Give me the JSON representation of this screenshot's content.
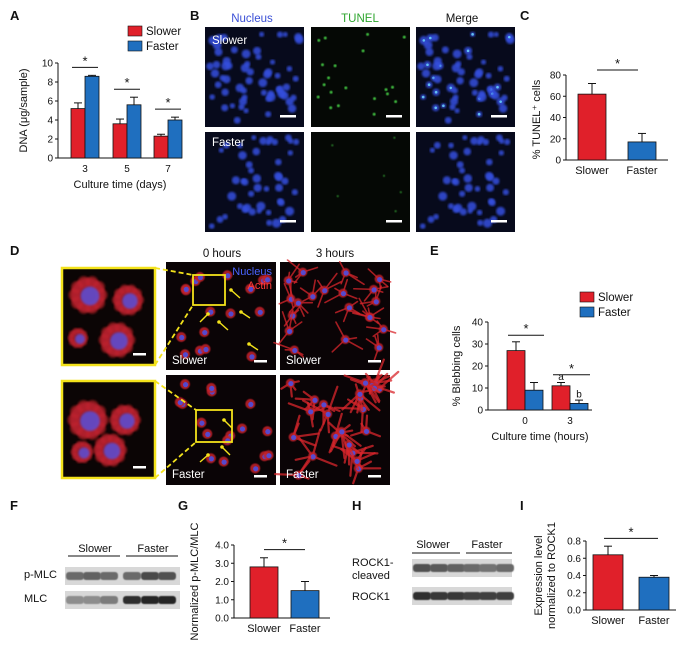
{
  "colors": {
    "slower": "#e0202a",
    "faster": "#1f6fbf",
    "nucleus": "#3a4fd6",
    "tunel": "#2ea52e",
    "actin": "#d9262c",
    "yellow": "#f3e21b"
  },
  "panel_labels": {
    "A": "A",
    "B": "B",
    "C": "C",
    "D": "D",
    "E": "E",
    "F": "F",
    "G": "G",
    "H": "H",
    "I": "I"
  },
  "legend": {
    "slower": "Slower",
    "faster": "Faster"
  },
  "significance_marker": "*",
  "B": {
    "headers": [
      "Nucleus",
      "TUNEL",
      "Merge"
    ],
    "rows": [
      "Slower",
      "Faster"
    ]
  },
  "D": {
    "time_headers": [
      "0 hours",
      "3 hours"
    ],
    "stain_nucleus": "Nucleus",
    "stain_actin": "Actin",
    "rows": [
      "Slower",
      "Faster"
    ]
  },
  "F": {
    "groups": [
      "Slower",
      "Faster"
    ],
    "bands": [
      "p-MLC",
      "MLC"
    ]
  },
  "H": {
    "groups": [
      "Slower",
      "Faster"
    ],
    "bands": [
      "ROCK1-cleaved",
      "ROCK1"
    ],
    "band1_line1": "ROCK1-",
    "band1_line2": "cleaved"
  },
  "chart_data": [
    {
      "panel": "A",
      "type": "bar",
      "categories": [
        "3",
        "5",
        "7"
      ],
      "series": [
        {
          "name": "Slower",
          "values": [
            5.2,
            3.6,
            2.3
          ],
          "errors": [
            0.6,
            0.5,
            0.2
          ]
        },
        {
          "name": "Faster",
          "values": [
            8.6,
            5.6,
            4.0
          ],
          "errors": [
            0.1,
            0.8,
            0.3
          ]
        }
      ],
      "xlabel": "Culture time (days)",
      "ylabel": "DNA (μg/sample)",
      "ylim": [
        0,
        10
      ],
      "yticks": [
        0,
        2,
        4,
        6,
        8,
        10
      ]
    },
    {
      "panel": "C",
      "type": "bar",
      "categories": [
        "Slower",
        "Faster"
      ],
      "values": [
        62,
        17
      ],
      "errors": [
        10,
        8
      ],
      "ylabel": "% TUNEL⁺ cells",
      "ylim": [
        0,
        80
      ],
      "yticks": [
        0,
        20,
        40,
        60,
        80
      ]
    },
    {
      "panel": "E",
      "type": "bar",
      "categories": [
        "0",
        "3"
      ],
      "series": [
        {
          "name": "Slower",
          "values": [
            27,
            11
          ],
          "errors": [
            4,
            1.5
          ]
        },
        {
          "name": "Faster",
          "values": [
            9,
            3
          ],
          "errors": [
            3.5,
            1.5
          ]
        }
      ],
      "annotations": [
        "a",
        "b"
      ],
      "xlabel": "Culture time (hours)",
      "ylabel": "% Blebbing cells",
      "ylim": [
        0,
        40
      ],
      "yticks": [
        0,
        10,
        20,
        30,
        40
      ]
    },
    {
      "panel": "G",
      "type": "bar",
      "categories": [
        "Slower",
        "Faster"
      ],
      "values": [
        2.8,
        1.5
      ],
      "errors": [
        0.5,
        0.5
      ],
      "ylabel": "Normalized p-MLC/MLC",
      "ylim": [
        0,
        4
      ],
      "yticks": [
        "0.0",
        "1.0",
        "2.0",
        "3.0",
        "4.0"
      ]
    },
    {
      "panel": "I",
      "type": "bar",
      "categories": [
        "Slower",
        "Faster"
      ],
      "values": [
        0.64,
        0.38
      ],
      "errors": [
        0.1,
        0.02
      ],
      "ylabel_line1": "Expression level",
      "ylabel_line2": "normalized to ROCK1",
      "ylim": [
        0,
        0.8
      ],
      "yticks": [
        "0.0",
        "0.2",
        "0.4",
        "0.6",
        "0.8"
      ]
    }
  ]
}
